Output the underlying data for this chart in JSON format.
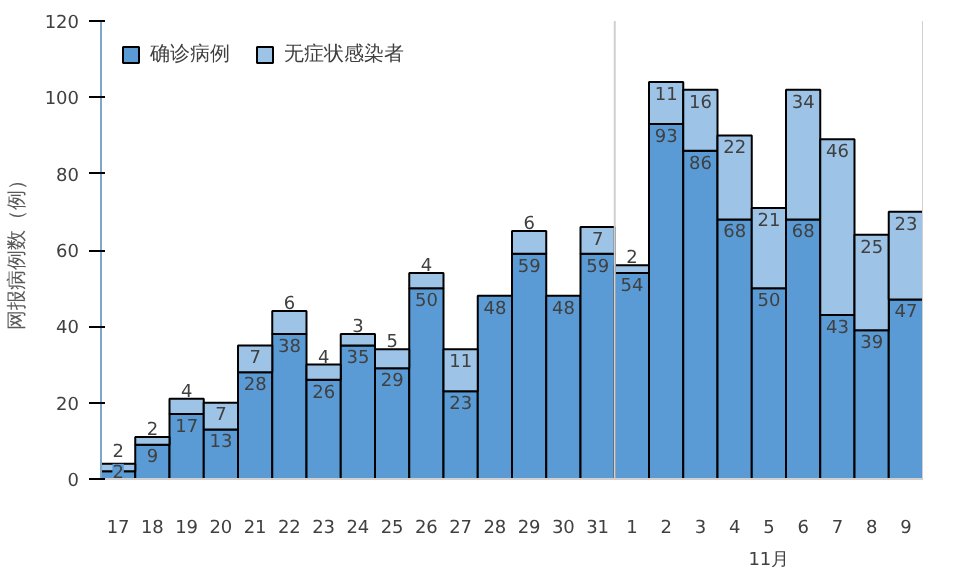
{
  "chart_data": {
    "type": "bar",
    "stacked": true,
    "ylabel": "网报病例数（例）",
    "categories": [
      "17",
      "18",
      "19",
      "20",
      "21",
      "22",
      "23",
      "24",
      "25",
      "26",
      "27",
      "28",
      "29",
      "30",
      "31",
      "1",
      "2",
      "3",
      "4",
      "5",
      "6",
      "7",
      "8",
      "9"
    ],
    "series": [
      {
        "name": "确诊病例",
        "color": "#5b9bd5",
        "values": [
          2,
          9,
          17,
          13,
          28,
          38,
          26,
          35,
          29,
          50,
          23,
          48,
          59,
          48,
          59,
          54,
          93,
          86,
          68,
          50,
          68,
          43,
          39,
          47
        ]
      },
      {
        "name": "无症状感染者",
        "color": "#9dc3e6",
        "values": [
          2,
          2,
          4,
          7,
          7,
          6,
          4,
          3,
          5,
          4,
          11,
          null,
          6,
          null,
          7,
          2,
          11,
          16,
          22,
          21,
          34,
          46,
          25,
          23
        ]
      }
    ],
    "ylim": [
      0,
      120
    ],
    "yticks": [
      0,
      20,
      40,
      60,
      80,
      100,
      120
    ],
    "grid": false,
    "legend": "top left",
    "data_labels": true,
    "annotations": [
      "11月"
    ]
  }
}
